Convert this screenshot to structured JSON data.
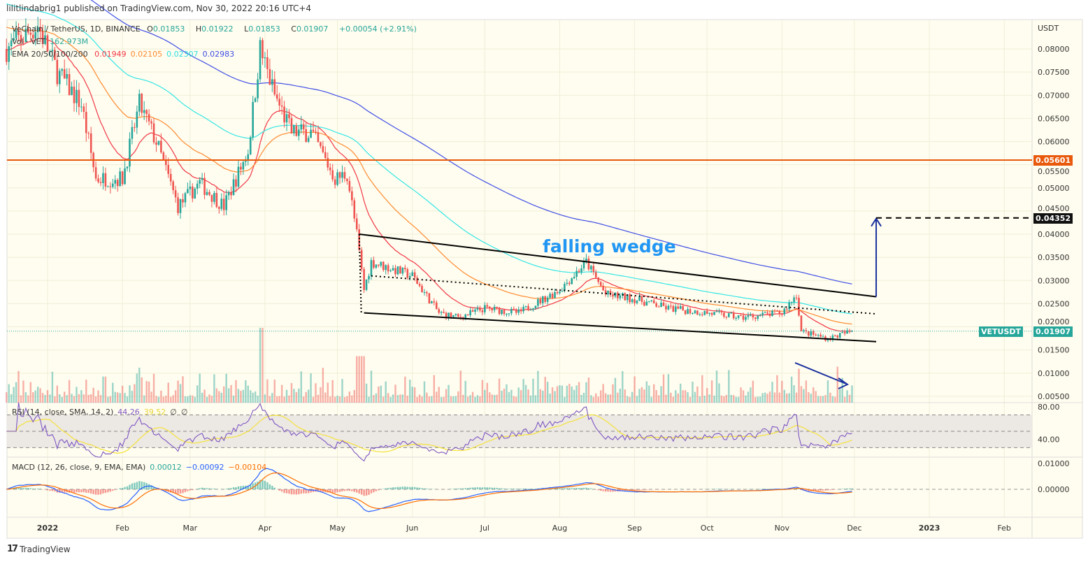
{
  "header": {
    "text": "lilitlindabrig1 published on TradingView.com, Nov 30, 2022 20:16 UTC+4"
  },
  "legend": {
    "symbol": "VeChain / TetherUS, 1D, BINANCE",
    "o_label": "O",
    "o": "0.01853",
    "h_label": "H",
    "h": "0.01922",
    "l_label": "L",
    "l": "0.01853",
    "c_label": "C",
    "c": "0.01907",
    "change": "+0.00054 (+2.91%)",
    "vol_label": "Vol · VET",
    "vol": "162.973M",
    "ema_label": "EMA 20/50/100/200",
    "ema20": "0.01949",
    "ema50": "0.02105",
    "ema100": "0.02307",
    "ema200": "0.02983",
    "rsi_label": "RSI (14, close, SMA, 14, 2)",
    "rsi": "44.26",
    "rsi_sma": "39.52",
    "rsi_x1": "∅",
    "rsi_x2": "∅",
    "macd_label": "MACD (12, 26, close, 9, EMA, EMA)",
    "macd_hist": "0.00012",
    "macd": "−0.00092",
    "macd_signal": "−0.00104"
  },
  "colors": {
    "bg": "#fffdef",
    "up": "#26a69a",
    "down": "#ef5350",
    "ema20": "#f23645",
    "ema50": "#ff8a30",
    "ema100": "#33e6e6",
    "ema200": "#3f4fe6",
    "level": "#e8590c",
    "rsi": "#7e57c2",
    "rsi_sma": "#f5e23a",
    "macd": "#2962ff",
    "signal": "#ff6d00",
    "annotation": "#2196f3",
    "arrow": "#1a2f9e"
  },
  "chart_data": {
    "type": "candlestick",
    "unit": "USDT",
    "price_axis": {
      "ylim": [
        0.004,
        0.0865
      ],
      "ticks": [
        "0.08000",
        "0.07500",
        "0.07000",
        "0.06500",
        "0.06000",
        "0.05500",
        "0.05000",
        "0.04500",
        "0.04000",
        "0.03500",
        "0.03000",
        "0.02500",
        "0.02000",
        "0.01500",
        "0.01000",
        "0.00500"
      ]
    },
    "time_ticks": [
      "2022",
      "Feb",
      "Mar",
      "Apr",
      "May",
      "Jun",
      "Jul",
      "Aug",
      "Sep",
      "Oct",
      "Nov",
      "Dec",
      "2023",
      "Feb"
    ],
    "close_keypoints": [
      [
        "2021-12-15",
        0.08
      ],
      [
        "2021-12-28",
        0.085
      ],
      [
        "2022-01-05",
        0.075
      ],
      [
        "2022-01-15",
        0.068
      ],
      [
        "2022-01-21",
        0.052
      ],
      [
        "2022-02-01",
        0.052
      ],
      [
        "2022-02-08",
        0.068
      ],
      [
        "2022-02-15",
        0.06
      ],
      [
        "2022-02-24",
        0.046
      ],
      [
        "2022-03-05",
        0.051
      ],
      [
        "2022-03-15",
        0.046
      ],
      [
        "2022-03-25",
        0.058
      ],
      [
        "2022-03-30",
        0.08
      ],
      [
        "2022-04-05",
        0.07
      ],
      [
        "2022-04-12",
        0.062
      ],
      [
        "2022-04-20",
        0.062
      ],
      [
        "2022-04-30",
        0.052
      ],
      [
        "2022-05-05",
        0.053
      ],
      [
        "2022-05-09",
        0.04
      ],
      [
        "2022-05-12",
        0.028
      ],
      [
        "2022-05-15",
        0.034
      ],
      [
        "2022-06-01",
        0.031
      ],
      [
        "2022-06-12",
        0.023
      ],
      [
        "2022-06-20",
        0.022
      ],
      [
        "2022-07-01",
        0.024
      ],
      [
        "2022-07-15",
        0.023
      ],
      [
        "2022-08-01",
        0.028
      ],
      [
        "2022-08-12",
        0.034
      ],
      [
        "2022-08-20",
        0.027
      ],
      [
        "2022-09-01",
        0.026
      ],
      [
        "2022-09-15",
        0.024
      ],
      [
        "2022-10-01",
        0.023
      ],
      [
        "2022-10-15",
        0.022
      ],
      [
        "2022-11-01",
        0.023
      ],
      [
        "2022-11-07",
        0.027
      ],
      [
        "2022-11-09",
        0.019
      ],
      [
        "2022-11-20",
        0.0175
      ],
      [
        "2022-11-30",
        0.01907
      ]
    ],
    "horizontal_level": {
      "value": 0.05601,
      "label": "0.05601"
    },
    "target": {
      "value": 0.04352,
      "label": "0.04352"
    },
    "last_price": {
      "symbol": "VETUSDT",
      "label": "0.01907",
      "value": 0.01907
    },
    "annotation": "falling wedge",
    "wedge": {
      "upper": [
        [
          "2022-05-10",
          0.04
        ],
        [
          "2022-12-10",
          0.0265
        ]
      ],
      "lower": [
        [
          "2022-05-12",
          0.023
        ],
        [
          "2022-12-10",
          0.0168
        ]
      ],
      "mid_dotted": [
        [
          "2022-05-15",
          0.031
        ],
        [
          "2022-12-10",
          0.0228
        ]
      ]
    },
    "rsi_axis": {
      "ticks": [
        "80.00",
        "40.00"
      ],
      "bands": [
        70,
        50,
        30
      ]
    },
    "macd_axis": {
      "ticks": [
        "0.01000",
        "0.00000"
      ]
    }
  },
  "footer": {
    "brand": "TradingView"
  }
}
